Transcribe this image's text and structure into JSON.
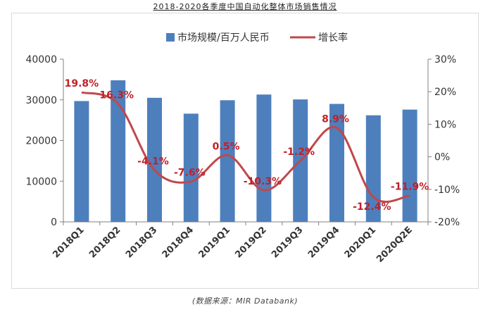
{
  "title": "2018-2020各季度中国自动化整体市场销售情况",
  "source": "(数据来源：MIR Databank)",
  "colors": {
    "bar": "#4e7fbd",
    "line": "#c0484b",
    "label": "#c0202a",
    "axis": "#808080",
    "text": "#333333"
  },
  "chart_data": {
    "type": "bar",
    "categories": [
      "2018Q1",
      "2018Q2",
      "2018Q3",
      "2018Q4",
      "2019Q1",
      "2019Q2",
      "2019Q3",
      "2019Q4",
      "2020Q1",
      "2020Q2E"
    ],
    "series": [
      {
        "name": "市场规模/百万人民币",
        "type": "bar",
        "axis": "left",
        "values": [
          29700,
          34800,
          30500,
          26600,
          29900,
          31300,
          30100,
          29000,
          26200,
          27600
        ]
      },
      {
        "name": "增长率",
        "type": "line",
        "axis": "right",
        "values": [
          19.8,
          16.3,
          -4.1,
          -7.6,
          0.5,
          -10.3,
          -1.2,
          8.9,
          -12.4,
          -11.9
        ],
        "labels": [
          "19.8%",
          "16.3%",
          "-4.1%",
          "-7.6%",
          "0.5%",
          "-10.3%",
          "-1.2%",
          "8.9%",
          "-12.4%",
          "-11.9%"
        ]
      }
    ],
    "y_left": {
      "ylim": [
        0,
        40000
      ],
      "ticks": [
        "0",
        "10000",
        "20000",
        "30000",
        "40000"
      ]
    },
    "y_right": {
      "ylim": [
        -20,
        30
      ],
      "ticks": [
        "-20%",
        "-10%",
        "0%",
        "10%",
        "20%",
        "30%"
      ]
    },
    "legend_position": "top-center",
    "grid": false
  }
}
